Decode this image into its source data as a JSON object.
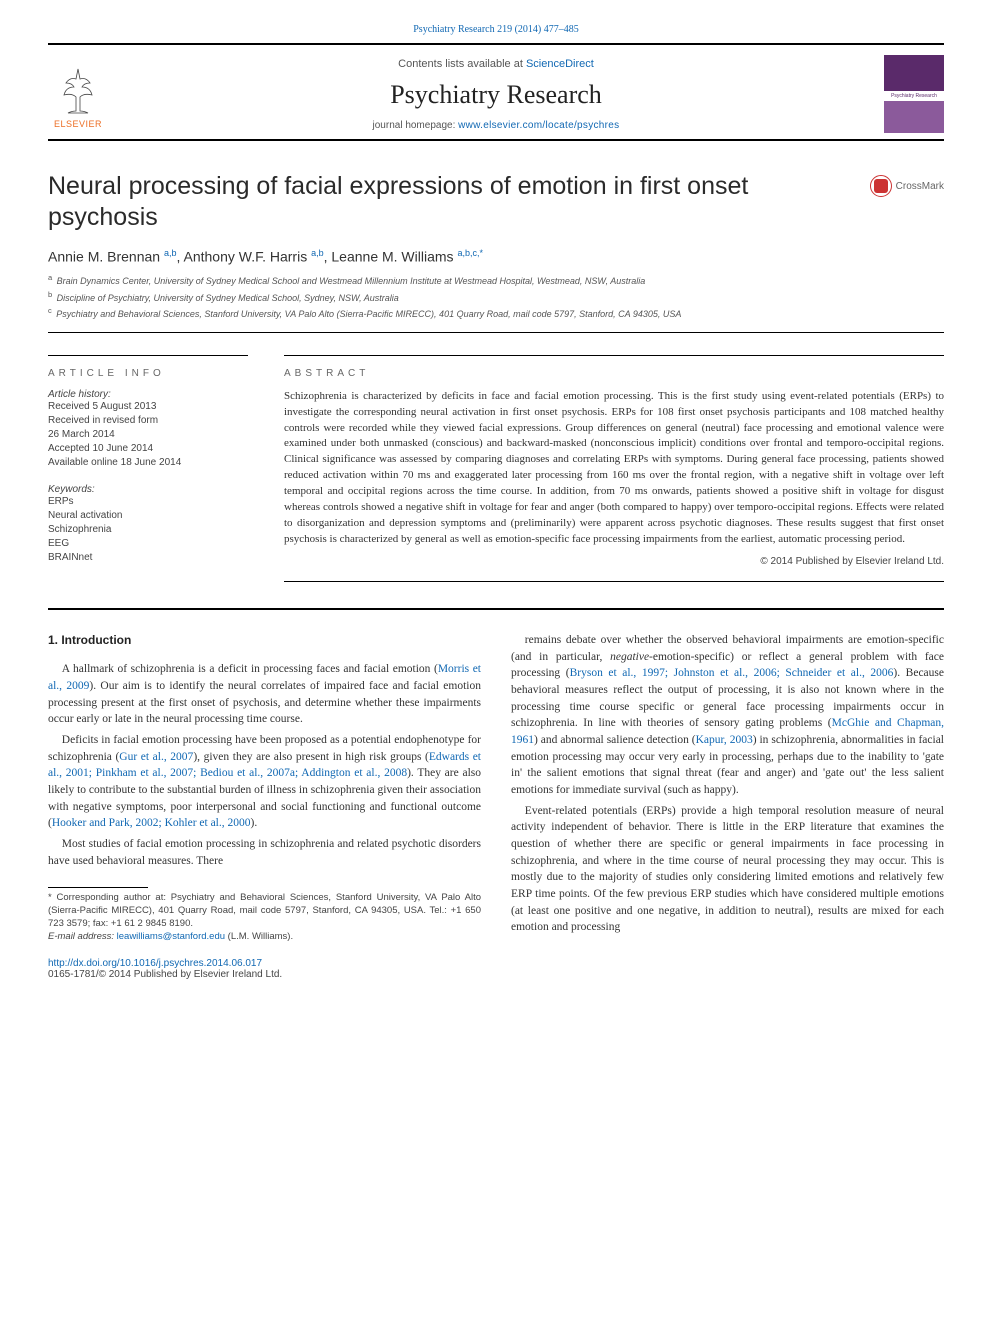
{
  "colors": {
    "link": "#1168b3",
    "text": "#333333",
    "muted": "#555555",
    "elsevier_orange": "#ec6e24",
    "cover_bg": "#6a3a7a",
    "crossmark_red": "#cc3333",
    "background": "#ffffff"
  },
  "typography": {
    "body_font": "Georgia, serif",
    "ui_font": "Arial, sans-serif",
    "journal_title_pt": 26,
    "article_title_pt": 25,
    "body_pt": 11.5,
    "small_pt": 10
  },
  "top_citation": "Psychiatry Research 219 (2014) 477–485",
  "banner": {
    "contents_prefix": "Contents lists available at ",
    "contents_link": "ScienceDirect",
    "journal_title": "Psychiatry Research",
    "homepage_prefix": "journal homepage: ",
    "homepage_url": "www.elsevier.com/locate/psychres",
    "publisher_logo_text": "ELSEVIER",
    "cover_label": "Psychiatry Research"
  },
  "crossmark_label": "CrossMark",
  "article": {
    "title": "Neural processing of facial expressions of emotion in first onset psychosis",
    "authors_html": "Annie M. Brennan <sup>a,b</sup>, Anthony W.F. Harris <sup>a,b</sup>, Leanne M. Williams <sup>a,b,c,*</sup>",
    "affiliations": [
      {
        "sup": "a",
        "text": "Brain Dynamics Center, University of Sydney Medical School and Westmead Millennium Institute at Westmead Hospital, Westmead, NSW, Australia"
      },
      {
        "sup": "b",
        "text": "Discipline of Psychiatry, University of Sydney Medical School, Sydney, NSW, Australia"
      },
      {
        "sup": "c",
        "text": "Psychiatry and Behavioral Sciences, Stanford University, VA Palo Alto (Sierra-Pacific MIRECC), 401 Quarry Road, mail code 5797, Stanford, CA 94305, USA"
      }
    ]
  },
  "info": {
    "header": "ARTICLE INFO",
    "history_label": "Article history:",
    "history": [
      "Received 5 August 2013",
      "Received in revised form",
      "26 March 2014",
      "Accepted 10 June 2014",
      "Available online 18 June 2014"
    ],
    "keywords_label": "Keywords:",
    "keywords": [
      "ERPs",
      "Neural activation",
      "Schizophrenia",
      "EEG",
      "BRAINnet"
    ]
  },
  "abstract": {
    "header": "ABSTRACT",
    "text": "Schizophrenia is characterized by deficits in face and facial emotion processing. This is the first study using event-related potentials (ERPs) to investigate the corresponding neural activation in first onset psychosis. ERPs for 108 first onset psychosis participants and 108 matched healthy controls were recorded while they viewed facial expressions. Group differences on general (neutral) face processing and emotional valence were examined under both unmasked (conscious) and backward-masked (nonconscious implicit) conditions over frontal and temporo-occipital regions. Clinical significance was assessed by comparing diagnoses and correlating ERPs with symptoms. During general face processing, patients showed reduced activation within 70 ms and exaggerated later processing from 160 ms over the frontal region, with a negative shift in voltage over left temporal and occipital regions across the time course. In addition, from 70 ms onwards, patients showed a positive shift in voltage for disgust whereas controls showed a negative shift in voltage for fear and anger (both compared to happy) over temporo-occipital regions. Effects were related to disorganization and depression symptoms and (preliminarily) were apparent across psychotic diagnoses. These results suggest that first onset psychosis is characterized by general as well as emotion-specific face processing impairments from the earliest, automatic processing period.",
    "copyright": "© 2014 Published by Elsevier Ireland Ltd."
  },
  "body": {
    "heading": "1. Introduction",
    "col1": [
      {
        "type": "p",
        "segments": [
          {
            "t": "A hallmark of schizophrenia is a deficit in processing faces and facial emotion ("
          },
          {
            "t": "Morris et al., 2009",
            "link": true
          },
          {
            "t": "). Our aim is to identify the neural correlates of impaired face and facial emotion processing present at the first onset of psychosis, and determine whether these impairments occur early or late in the neural processing time course."
          }
        ]
      },
      {
        "type": "p",
        "segments": [
          {
            "t": "Deficits in facial emotion processing have been proposed as a potential endophenotype for schizophrenia ("
          },
          {
            "t": "Gur et al., 2007",
            "link": true
          },
          {
            "t": "), given they are also present in high risk groups ("
          },
          {
            "t": "Edwards et al., 2001; Pinkham et al., 2007; Bediou et al., 2007a; Addington et al., 2008",
            "link": true
          },
          {
            "t": "). They are also likely to contribute to the substantial burden of illness in schizophrenia given their association with negative symptoms, poor interpersonal and social functioning and functional outcome ("
          },
          {
            "t": "Hooker and Park, 2002; Kohler et al., 2000",
            "link": true
          },
          {
            "t": ")."
          }
        ]
      },
      {
        "type": "p",
        "segments": [
          {
            "t": "Most studies of facial emotion processing in schizophrenia and related psychotic disorders have used behavioral measures. There"
          }
        ]
      }
    ],
    "col2": [
      {
        "type": "p",
        "segments": [
          {
            "t": "remains debate over whether the observed behavioral impairments are emotion-specific (and in particular, "
          },
          {
            "t": "negative",
            "italic": true
          },
          {
            "t": "-emotion-specific) or reflect a general problem with face processing ("
          },
          {
            "t": "Bryson et al., 1997; Johnston et al., 2006; Schneider et al., 2006",
            "link": true
          },
          {
            "t": "). Because behavioral measures reflect the output of processing, it is also not known where in the processing time course specific or general face processing impairments occur in schizophrenia. In line with theories of sensory gating problems ("
          },
          {
            "t": "McGhie and Chapman, 1961",
            "link": true
          },
          {
            "t": ") and abnormal salience detection ("
          },
          {
            "t": "Kapur, 2003",
            "link": true
          },
          {
            "t": ") in schizophrenia, abnormalities in facial emotion processing may occur very early in processing, perhaps due to the inability to 'gate in' the salient emotions that signal threat (fear and anger) and 'gate out' the less salient emotions for immediate survival (such as happy)."
          }
        ]
      },
      {
        "type": "p",
        "segments": [
          {
            "t": "Event-related potentials (ERPs) provide a high temporal resolution measure of neural activity independent of behavior. There is little in the ERP literature that examines the question of whether there are specific or general impairments in face processing in schizophrenia, and where in the time course of neural processing they may occur. This is mostly due to the majority of studies only considering limited emotions and relatively few ERP time points. Of the few previous ERP studies which have considered multiple emotions (at least one positive and one negative, in addition to neutral), results are mixed for each emotion and processing"
          }
        ]
      }
    ]
  },
  "footnotes": {
    "corr_prefix": "* Corresponding author at: Psychiatry and Behavioral Sciences, Stanford University, VA Palo Alto (Sierra-Pacific MIRECC), 401 Quarry Road, mail code 5797, Stanford, CA 94305, USA. Tel.: +1 650 723 3579; fax: +1 61 2 9845 8190.",
    "email_label": "E-mail address: ",
    "email": "leawilliams@stanford.edu",
    "email_suffix": " (L.M. Williams)."
  },
  "bottom": {
    "doi": "http://dx.doi.org/10.1016/j.psychres.2014.06.017",
    "issn_line": "0165-1781/© 2014 Published by Elsevier Ireland Ltd."
  }
}
